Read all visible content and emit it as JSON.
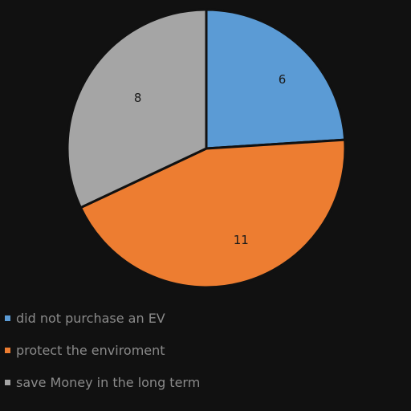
{
  "chart_data": {
    "type": "pie",
    "title": "",
    "categories": [
      "did not purchase an EV",
      "protect the enviroment",
      "save Money in the long term"
    ],
    "values": [
      6,
      11,
      8
    ],
    "colors": [
      "#5b9bd5",
      "#ed7d31",
      "#a5a5a5"
    ],
    "data_labels": [
      "6",
      "11",
      "8"
    ],
    "legend_position": "bottom-left"
  },
  "legend": {
    "items": [
      {
        "label": "did not purchase an EV",
        "color": "#5b9bd5"
      },
      {
        "label": "protect the enviroment",
        "color": "#ed7d31"
      },
      {
        "label": "save Money in the long term",
        "color": "#a5a5a5"
      }
    ]
  }
}
